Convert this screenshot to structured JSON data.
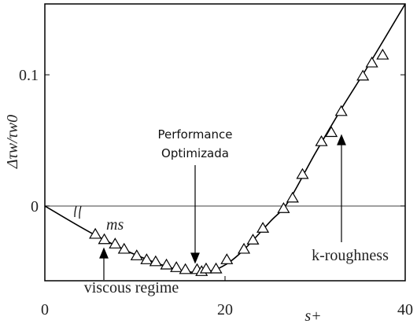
{
  "chart_data": {
    "type": "line",
    "ylabel": "Δτw/τw0",
    "xlabel": "s+",
    "xlim": [
      0,
      40
    ],
    "xticks": [
      0,
      20,
      40
    ],
    "ylim": [
      -0.057,
      0.154
    ],
    "yticks": [
      0,
      0.1
    ],
    "grid": false,
    "series": [
      {
        "color": "#000000",
        "marker": "none",
        "x": [
          0,
          5,
          10,
          15,
          18,
          20,
          22,
          25,
          27,
          30,
          33,
          36,
          40
        ],
        "values": [
          0,
          -0.02,
          -0.037,
          -0.049,
          -0.05,
          -0.045,
          -0.034,
          -0.012,
          0.003,
          0.04,
          0.075,
          0.108,
          0.154
        ]
      },
      {
        "color": "#000000",
        "marker": "triangle",
        "x": [
          5.6,
          6.6,
          7.8,
          8.8,
          10.2,
          11.3,
          12.3,
          13.5,
          14.6,
          15.6,
          16.9,
          17.4,
          17.9,
          19.0,
          20.2,
          22.1,
          23.1,
          24.2,
          26.5,
          27.5,
          28.6,
          30.7,
          31.8,
          32.9,
          35.3,
          36.3,
          37.5
        ],
        "values": [
          -0.0216,
          -0.0257,
          -0.029,
          -0.033,
          -0.038,
          -0.041,
          -0.0425,
          -0.045,
          -0.047,
          -0.0485,
          -0.0485,
          -0.05,
          -0.048,
          -0.048,
          -0.041,
          -0.033,
          -0.026,
          -0.017,
          -0.002,
          0.006,
          0.024,
          0.049,
          0.056,
          0.072,
          0.099,
          0.109,
          0.115
        ]
      }
    ],
    "annotations": [
      "Performance",
      "Optimizada",
      "ms",
      "viscous regime",
      "k-roughness"
    ]
  }
}
